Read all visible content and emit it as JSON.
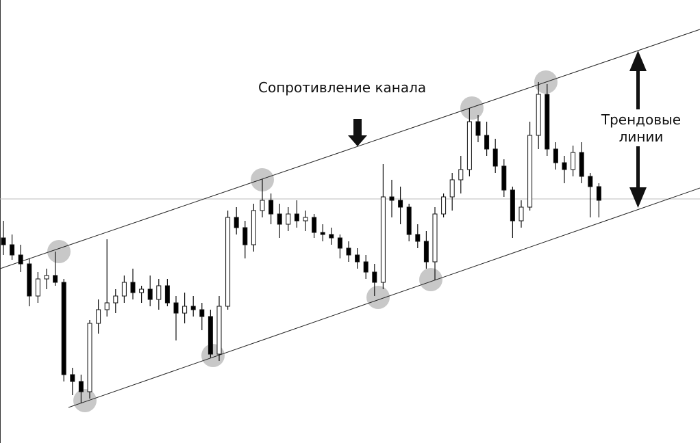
{
  "chart_data": {
    "type": "candlestick",
    "annotations": [
      "Сопротивление канала",
      "Трендовые линии"
    ],
    "open": [
      300,
      290,
      275,
      262,
      215,
      240,
      245,
      235,
      100,
      90,
      75,
      175,
      195,
      205,
      215,
      235,
      220,
      225,
      210,
      230,
      205,
      190,
      200,
      195,
      185,
      130,
      200,
      330,
      315,
      290,
      340,
      355,
      335,
      320,
      335,
      325,
      330,
      308,
      305,
      300,
      285,
      275,
      265,
      250,
      235,
      360,
      355,
      345,
      305,
      295,
      265,
      335,
      360,
      385,
      400,
      470,
      450,
      430,
      405,
      370,
      325,
      345,
      450,
      510,
      430,
      410,
      400,
      425,
      390,
      375
    ],
    "high": [
      325,
      305,
      290,
      270,
      250,
      255,
      280,
      240,
      110,
      100,
      180,
      210,
      298,
      225,
      245,
      255,
      230,
      245,
      240,
      240,
      215,
      220,
      215,
      205,
      195,
      215,
      340,
      345,
      325,
      350,
      386,
      365,
      350,
      345,
      355,
      340,
      335,
      320,
      315,
      305,
      295,
      285,
      275,
      262,
      408,
      385,
      375,
      350,
      320,
      310,
      345,
      365,
      395,
      420,
      490,
      480,
      470,
      445,
      415,
      375,
      355,
      470,
      528,
      525,
      440,
      420,
      435,
      440,
      395,
      380
    ],
    "low": [
      275,
      268,
      250,
      200,
      205,
      225,
      230,
      90,
      70,
      58,
      65,
      160,
      185,
      190,
      205,
      210,
      205,
      200,
      195,
      200,
      150,
      175,
      185,
      165,
      125,
      120,
      195,
      305,
      270,
      280,
      330,
      320,
      300,
      310,
      315,
      310,
      300,
      295,
      290,
      270,
      265,
      255,
      240,
      215,
      225,
      330,
      320,
      295,
      285,
      255,
      238,
      330,
      340,
      365,
      390,
      440,
      420,
      395,
      360,
      300,
      315,
      340,
      430,
      420,
      400,
      380,
      390,
      380,
      330,
      330
    ],
    "close": [
      290,
      275,
      262,
      215,
      240,
      245,
      235,
      100,
      90,
      75,
      175,
      195,
      205,
      215,
      235,
      220,
      225,
      210,
      230,
      205,
      190,
      200,
      195,
      185,
      130,
      200,
      330,
      315,
      290,
      340,
      355,
      335,
      320,
      335,
      325,
      330,
      308,
      305,
      300,
      285,
      275,
      265,
      250,
      235,
      360,
      355,
      345,
      305,
      295,
      265,
      335,
      360,
      385,
      400,
      470,
      450,
      430,
      405,
      370,
      325,
      345,
      450,
      510,
      430,
      410,
      400,
      425,
      390,
      375,
      355
    ],
    "ylim": [
      0,
      648
    ],
    "up_color": "#ffffff",
    "down_color": "#000000"
  }
}
